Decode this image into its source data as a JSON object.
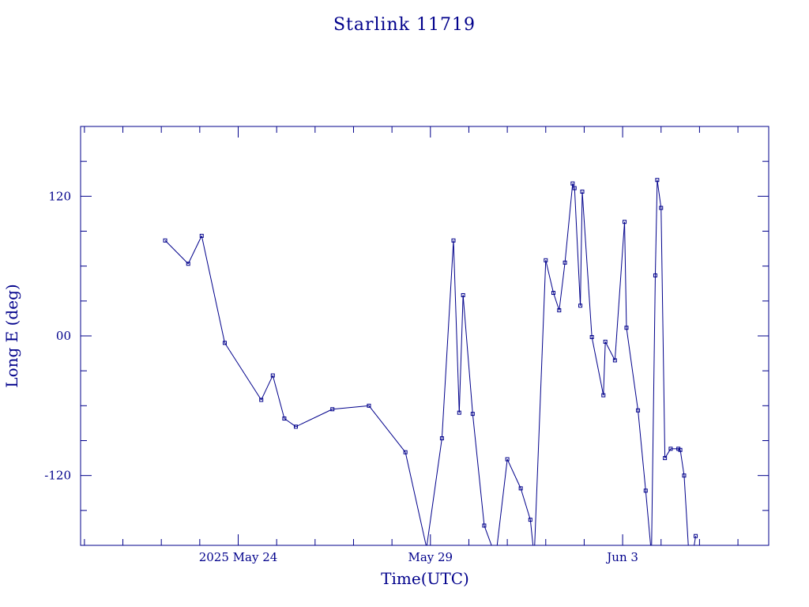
{
  "chart_data": {
    "type": "line",
    "title": "Starlink 11719",
    "xlabel": "Time(UTC)",
    "ylabel": "Long E (deg)",
    "x_unit": "days",
    "xlim": [
      19.9,
      37.8
    ],
    "ylim": [
      -180,
      180
    ],
    "x_tick_labels": [
      {
        "x": 24,
        "label": "2025 May 24"
      },
      {
        "x": 29,
        "label": "May 29"
      },
      {
        "x": 34,
        "label": "Jun  3"
      }
    ],
    "y_tick_labels": [
      {
        "y": 120,
        "label": "120"
      },
      {
        "y": 0,
        "label": "00"
      },
      {
        "y": -120,
        "label": "-120"
      }
    ],
    "series": [
      {
        "color": "#00008b",
        "marker": "square",
        "x": [
          22.1,
          22.7,
          23.05,
          23.65,
          24.6,
          24.9,
          25.2,
          25.5,
          26.45,
          27.4,
          28.35,
          28.9,
          29.3,
          29.6,
          29.75,
          29.85,
          30.1,
          30.4,
          30.7,
          31.0,
          31.35,
          31.6,
          31.7,
          32.0,
          32.2,
          32.35,
          32.5,
          32.7,
          32.75,
          32.9,
          32.95,
          33.2,
          33.5,
          33.55,
          33.8,
          34.05,
          34.1,
          34.4,
          34.6,
          34.75,
          34.85,
          34.9,
          35.0,
          35.1,
          35.25,
          35.45,
          35.5,
          35.6,
          35.75,
          35.9
        ],
        "y": [
          82,
          62,
          86,
          -6,
          -55,
          -34,
          -71,
          -78,
          -63,
          -60,
          -100,
          -182,
          -88,
          82,
          -66,
          35,
          -67,
          -163,
          -190,
          -106,
          -131,
          -158,
          -190,
          65,
          37,
          22,
          63,
          131,
          127,
          26,
          124,
          -1,
          -51,
          -5,
          -21,
          98,
          7,
          -64,
          -133,
          -188,
          52,
          134,
          110,
          -105,
          -97,
          -97,
          -98,
          -120,
          -203,
          -172
        ]
      }
    ]
  }
}
